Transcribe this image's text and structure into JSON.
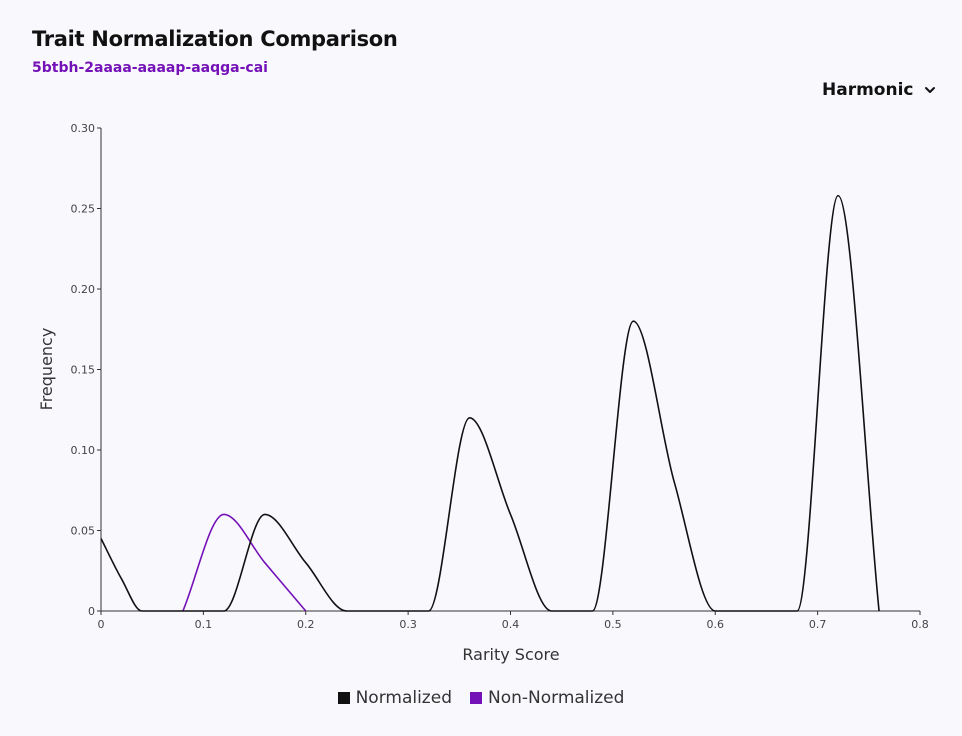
{
  "header": {
    "title": "Trait Normalization Comparison",
    "subtitle": "5btbh-2aaaa-aaaap-aaqga-cai"
  },
  "dropdown": {
    "selected": "Harmonic",
    "icon": "chevron-down-icon"
  },
  "colors": {
    "normalized": "#111111",
    "non_normalized": "#7412b8"
  },
  "chart_data": {
    "type": "line",
    "xlabel": "Rarity Score",
    "ylabel": "Frequency",
    "xlim": [
      0,
      0.8
    ],
    "ylim": [
      0,
      0.3
    ],
    "x_ticks": [
      "0",
      "0.1",
      "0.2",
      "0.3",
      "0.4",
      "0.5",
      "0.6",
      "0.7",
      "0.8"
    ],
    "y_ticks": [
      "0",
      "0.05",
      "0.10",
      "0.15",
      "0.20",
      "0.25",
      "0.30"
    ],
    "series": [
      {
        "name": "Normalized",
        "x": [
          0,
          0.02,
          0.04,
          0.12,
          0.16,
          0.2,
          0.24,
          0.32,
          0.36,
          0.4,
          0.44,
          0.48,
          0.52,
          0.56,
          0.6,
          0.68,
          0.72,
          0.76
        ],
        "y": [
          0.045,
          0.02,
          0,
          0,
          0.06,
          0.03,
          0,
          0,
          0.12,
          0.06,
          0,
          0,
          0.18,
          0.08,
          0,
          0,
          0.258,
          0
        ]
      },
      {
        "name": "Non-Normalized",
        "x": [
          0.08,
          0.12,
          0.16,
          0.2
        ],
        "y": [
          0,
          0.06,
          0.03,
          0
        ]
      }
    ],
    "legend": [
      "Normalized",
      "Non-Normalized"
    ],
    "legend_position": "bottom"
  }
}
